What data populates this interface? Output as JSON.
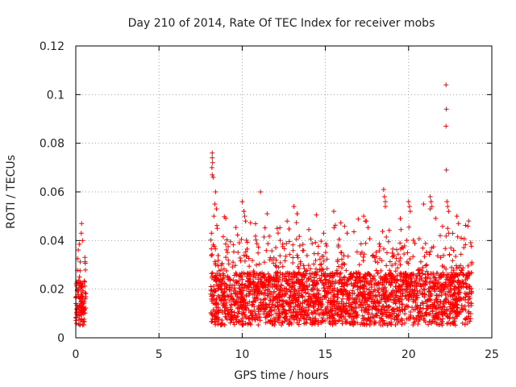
{
  "chart_data": {
    "type": "scatter",
    "title": "Day 210 of 2014, Rate Of TEC Index for receiver mobs",
    "xlabel": "GPS time / hours",
    "ylabel": "ROTI / TECUs",
    "xlim": [
      0,
      25
    ],
    "ylim": [
      0,
      0.12
    ],
    "xticks": [
      0,
      5,
      10,
      15,
      20,
      25
    ],
    "yticks": [
      0,
      0.02,
      0.04,
      0.06,
      0.08,
      0.1,
      0.12
    ],
    "xtick_labels": [
      "0",
      "5",
      "10",
      "15",
      "20",
      "25"
    ],
    "ytick_labels": [
      "0",
      "0.02",
      "0.04",
      "0.06",
      "0.08",
      "0.1",
      "0.12"
    ],
    "grid": true,
    "marker": "+",
    "color": "#ff0000",
    "segments": [
      {
        "start": 0.0,
        "end": 0.6,
        "base": 0.014,
        "spread": 0.02,
        "n": 120
      },
      {
        "start": 8.1,
        "end": 23.8,
        "base": 0.016,
        "spread": 0.024,
        "n": 2600
      }
    ],
    "outliers": [
      {
        "x": 0.35,
        "y": 0.047
      },
      {
        "x": 0.33,
        "y": 0.043
      },
      {
        "x": 0.4,
        "y": 0.04
      },
      {
        "x": 8.2,
        "y": 0.076
      },
      {
        "x": 8.2,
        "y": 0.074
      },
      {
        "x": 8.22,
        "y": 0.072
      },
      {
        "x": 8.18,
        "y": 0.07
      },
      {
        "x": 8.2,
        "y": 0.067
      },
      {
        "x": 8.25,
        "y": 0.066
      },
      {
        "x": 8.4,
        "y": 0.06
      },
      {
        "x": 8.35,
        "y": 0.055
      },
      {
        "x": 8.45,
        "y": 0.053
      },
      {
        "x": 8.3,
        "y": 0.05
      },
      {
        "x": 8.5,
        "y": 0.045
      },
      {
        "x": 10.0,
        "y": 0.056
      },
      {
        "x": 10.1,
        "y": 0.052
      },
      {
        "x": 10.15,
        "y": 0.05
      },
      {
        "x": 10.2,
        "y": 0.048
      },
      {
        "x": 11.1,
        "y": 0.06
      },
      {
        "x": 11.5,
        "y": 0.051
      },
      {
        "x": 12.1,
        "y": 0.045
      },
      {
        "x": 12.7,
        "y": 0.048
      },
      {
        "x": 13.1,
        "y": 0.054
      },
      {
        "x": 13.3,
        "y": 0.051
      },
      {
        "x": 14.9,
        "y": 0.043
      },
      {
        "x": 15.5,
        "y": 0.052
      },
      {
        "x": 16.3,
        "y": 0.043
      },
      {
        "x": 17.3,
        "y": 0.05
      },
      {
        "x": 17.4,
        "y": 0.048
      },
      {
        "x": 18.5,
        "y": 0.061
      },
      {
        "x": 18.55,
        "y": 0.058
      },
      {
        "x": 18.6,
        "y": 0.056
      },
      {
        "x": 18.6,
        "y": 0.054
      },
      {
        "x": 19.5,
        "y": 0.049
      },
      {
        "x": 20.0,
        "y": 0.056
      },
      {
        "x": 20.05,
        "y": 0.054
      },
      {
        "x": 20.1,
        "y": 0.052
      },
      {
        "x": 20.9,
        "y": 0.055
      },
      {
        "x": 21.3,
        "y": 0.058
      },
      {
        "x": 21.35,
        "y": 0.056
      },
      {
        "x": 21.3,
        "y": 0.053
      },
      {
        "x": 21.4,
        "y": 0.054
      },
      {
        "x": 22.25,
        "y": 0.104
      },
      {
        "x": 22.27,
        "y": 0.094
      },
      {
        "x": 22.25,
        "y": 0.087
      },
      {
        "x": 22.27,
        "y": 0.069
      },
      {
        "x": 22.3,
        "y": 0.056
      },
      {
        "x": 22.35,
        "y": 0.054
      },
      {
        "x": 22.4,
        "y": 0.052
      },
      {
        "x": 22.35,
        "y": 0.045
      },
      {
        "x": 22.4,
        "y": 0.043
      },
      {
        "x": 22.9,
        "y": 0.05
      },
      {
        "x": 23.0,
        "y": 0.047
      }
    ]
  }
}
